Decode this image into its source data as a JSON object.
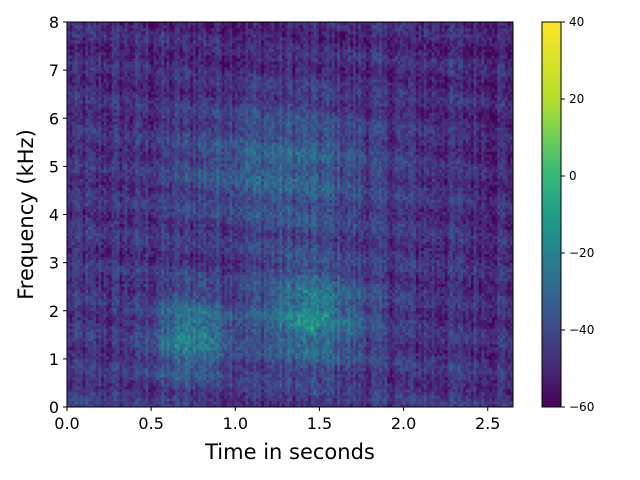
{
  "chart_data": {
    "type": "heatmap",
    "title": "",
    "xlabel": "Time in seconds",
    "ylabel": "Frequency (kHz)",
    "xlim": [
      0.0,
      2.65
    ],
    "ylim": [
      0,
      8
    ],
    "x_ticks": [
      "0.0",
      "0.5",
      "1.0",
      "1.5",
      "2.0",
      "2.5"
    ],
    "y_ticks": [
      "0",
      "1",
      "2",
      "3",
      "4",
      "5",
      "6",
      "7",
      "8"
    ],
    "colormap": "viridis",
    "colorbar": {
      "range": [
        -60,
        40
      ],
      "ticks": [
        "−60",
        "−40",
        "−20",
        "0",
        "20",
        "40"
      ],
      "tick_values": [
        -60,
        -40,
        -20,
        0,
        20,
        40
      ]
    },
    "grid": false,
    "description_values": {
      "high_energy_regions": [
        {
          "time_range": [
            0.5,
            1.0
          ],
          "freq_range_khz": [
            0.5,
            2.5
          ],
          "approx_level_db": -20
        },
        {
          "time_range": [
            1.1,
            1.8
          ],
          "freq_range_khz": [
            0.8,
            3.0
          ],
          "approx_level_db": -18
        },
        {
          "time_range": [
            0.6,
            1.9
          ],
          "freq_range_khz": [
            3.5,
            6.5
          ],
          "approx_level_db": -30
        }
      ],
      "background_level_db": -50
    }
  }
}
